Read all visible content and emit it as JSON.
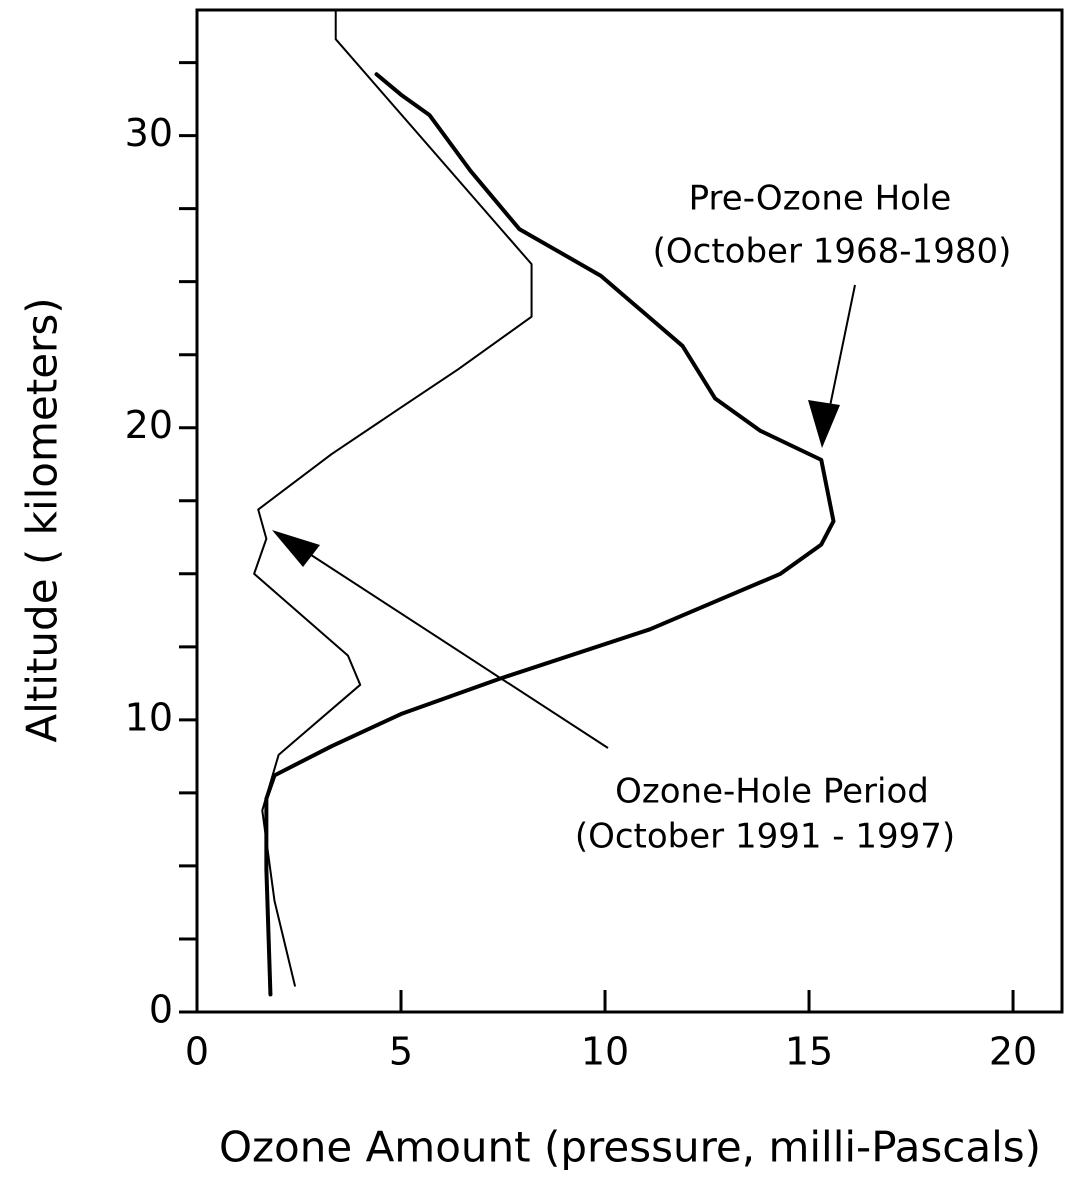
{
  "chart_data": {
    "type": "line",
    "xlabel": "Ozone Amount (pressure, milli-Pascals)",
    "ylabel": "Altitude ( kilometers)",
    "xlim": [
      0,
      21.2
    ],
    "xticks": [
      0,
      5,
      10,
      15,
      20
    ],
    "ylim": [
      0,
      34.3
    ],
    "yticks": [
      0,
      10,
      20,
      30
    ],
    "yminor_ticks": [
      2.5,
      5,
      7.5,
      12.5,
      15,
      17.5,
      22.5,
      25,
      27.5,
      32.5
    ],
    "series": [
      {
        "name": "Pre-Ozone Hole",
        "period": "(October 1968-1980)",
        "color": "#000000",
        "width": 4,
        "x": [
          4.4,
          5.0,
          5.7,
          6.7,
          7.9,
          9.9,
          10.9,
          11.9,
          12.7,
          13.8,
          15.3,
          15.6,
          15.3,
          14.3,
          11.1,
          7.4,
          5.0,
          3.3,
          1.9,
          1.7,
          1.7,
          1.8
        ],
        "values": [
          32.1,
          31.4,
          30.7,
          28.8,
          26.8,
          25.2,
          24.0,
          22.8,
          21.0,
          19.9,
          18.9,
          16.8,
          16.0,
          15.0,
          13.1,
          11.4,
          10.2,
          9.1,
          8.1,
          7.3,
          4.9,
          0.6
        ]
      },
      {
        "name": "Ozone-Hole Period",
        "period": "(October 1991 - 1997)",
        "color": "#000000",
        "width": 2,
        "x": [
          3.4,
          3.4,
          8.2,
          8.2,
          6.4,
          4.9,
          3.3,
          1.5,
          1.7,
          1.4,
          3.7,
          4.0,
          2.0,
          1.6,
          1.9,
          2.4
        ],
        "values": [
          34.3,
          33.3,
          25.6,
          23.8,
          22.0,
          20.6,
          19.1,
          17.2,
          16.2,
          15.0,
          12.2,
          11.2,
          8.8,
          6.9,
          3.8,
          0.9
        ]
      }
    ]
  }
}
